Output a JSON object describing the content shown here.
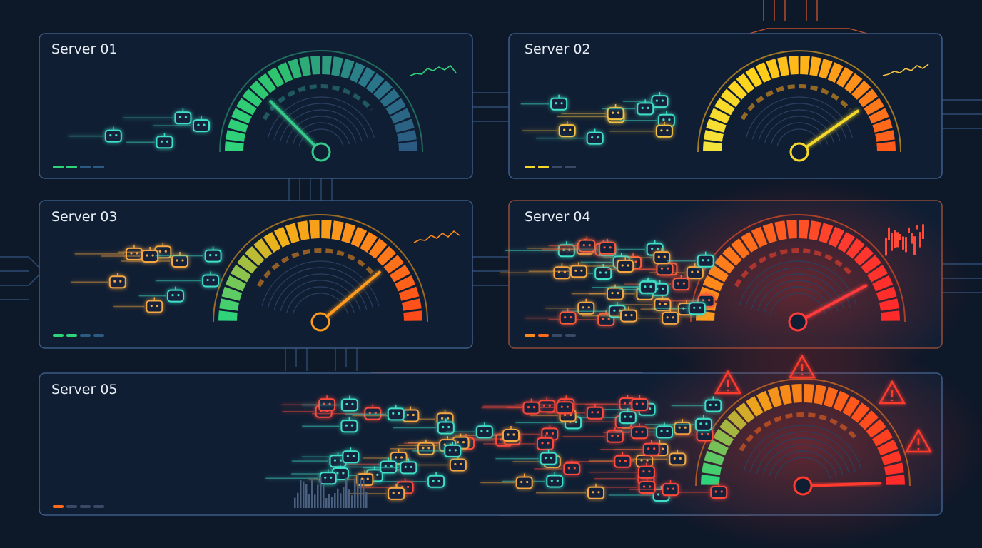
{
  "panels": [
    {
      "title": "Server 01"
    },
    {
      "title": "Server 02"
    },
    {
      "title": "Server 03"
    },
    {
      "title": "Server 04"
    },
    {
      "title": "Server 05"
    }
  ]
}
